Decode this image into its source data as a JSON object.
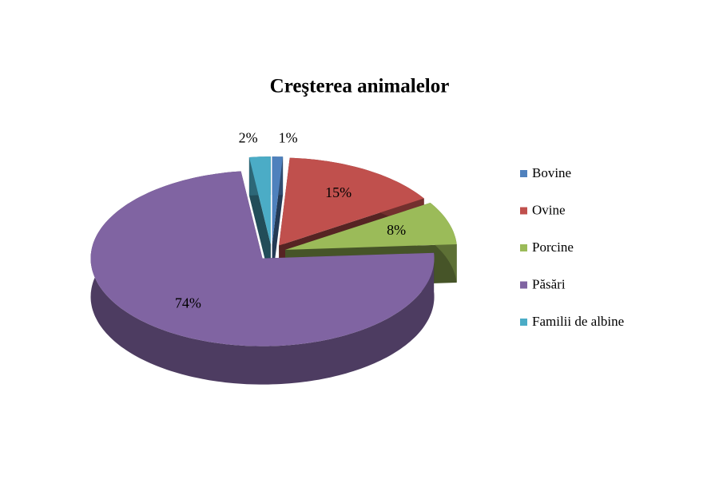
{
  "chart_data": {
    "type": "pie",
    "title": "Creşterea animalelor",
    "categories": [
      "Bovine",
      "Ovine",
      "Porcine",
      "Păsări",
      "Familii de albine"
    ],
    "values": [
      1,
      15,
      8,
      74,
      2
    ],
    "value_labels": [
      "1%",
      "15%",
      "8%",
      "74%",
      "2%"
    ],
    "colors": [
      "#4f81bd",
      "#c0504d",
      "#9bbb59",
      "#8064a2",
      "#4bacc6"
    ],
    "legend": "right"
  }
}
